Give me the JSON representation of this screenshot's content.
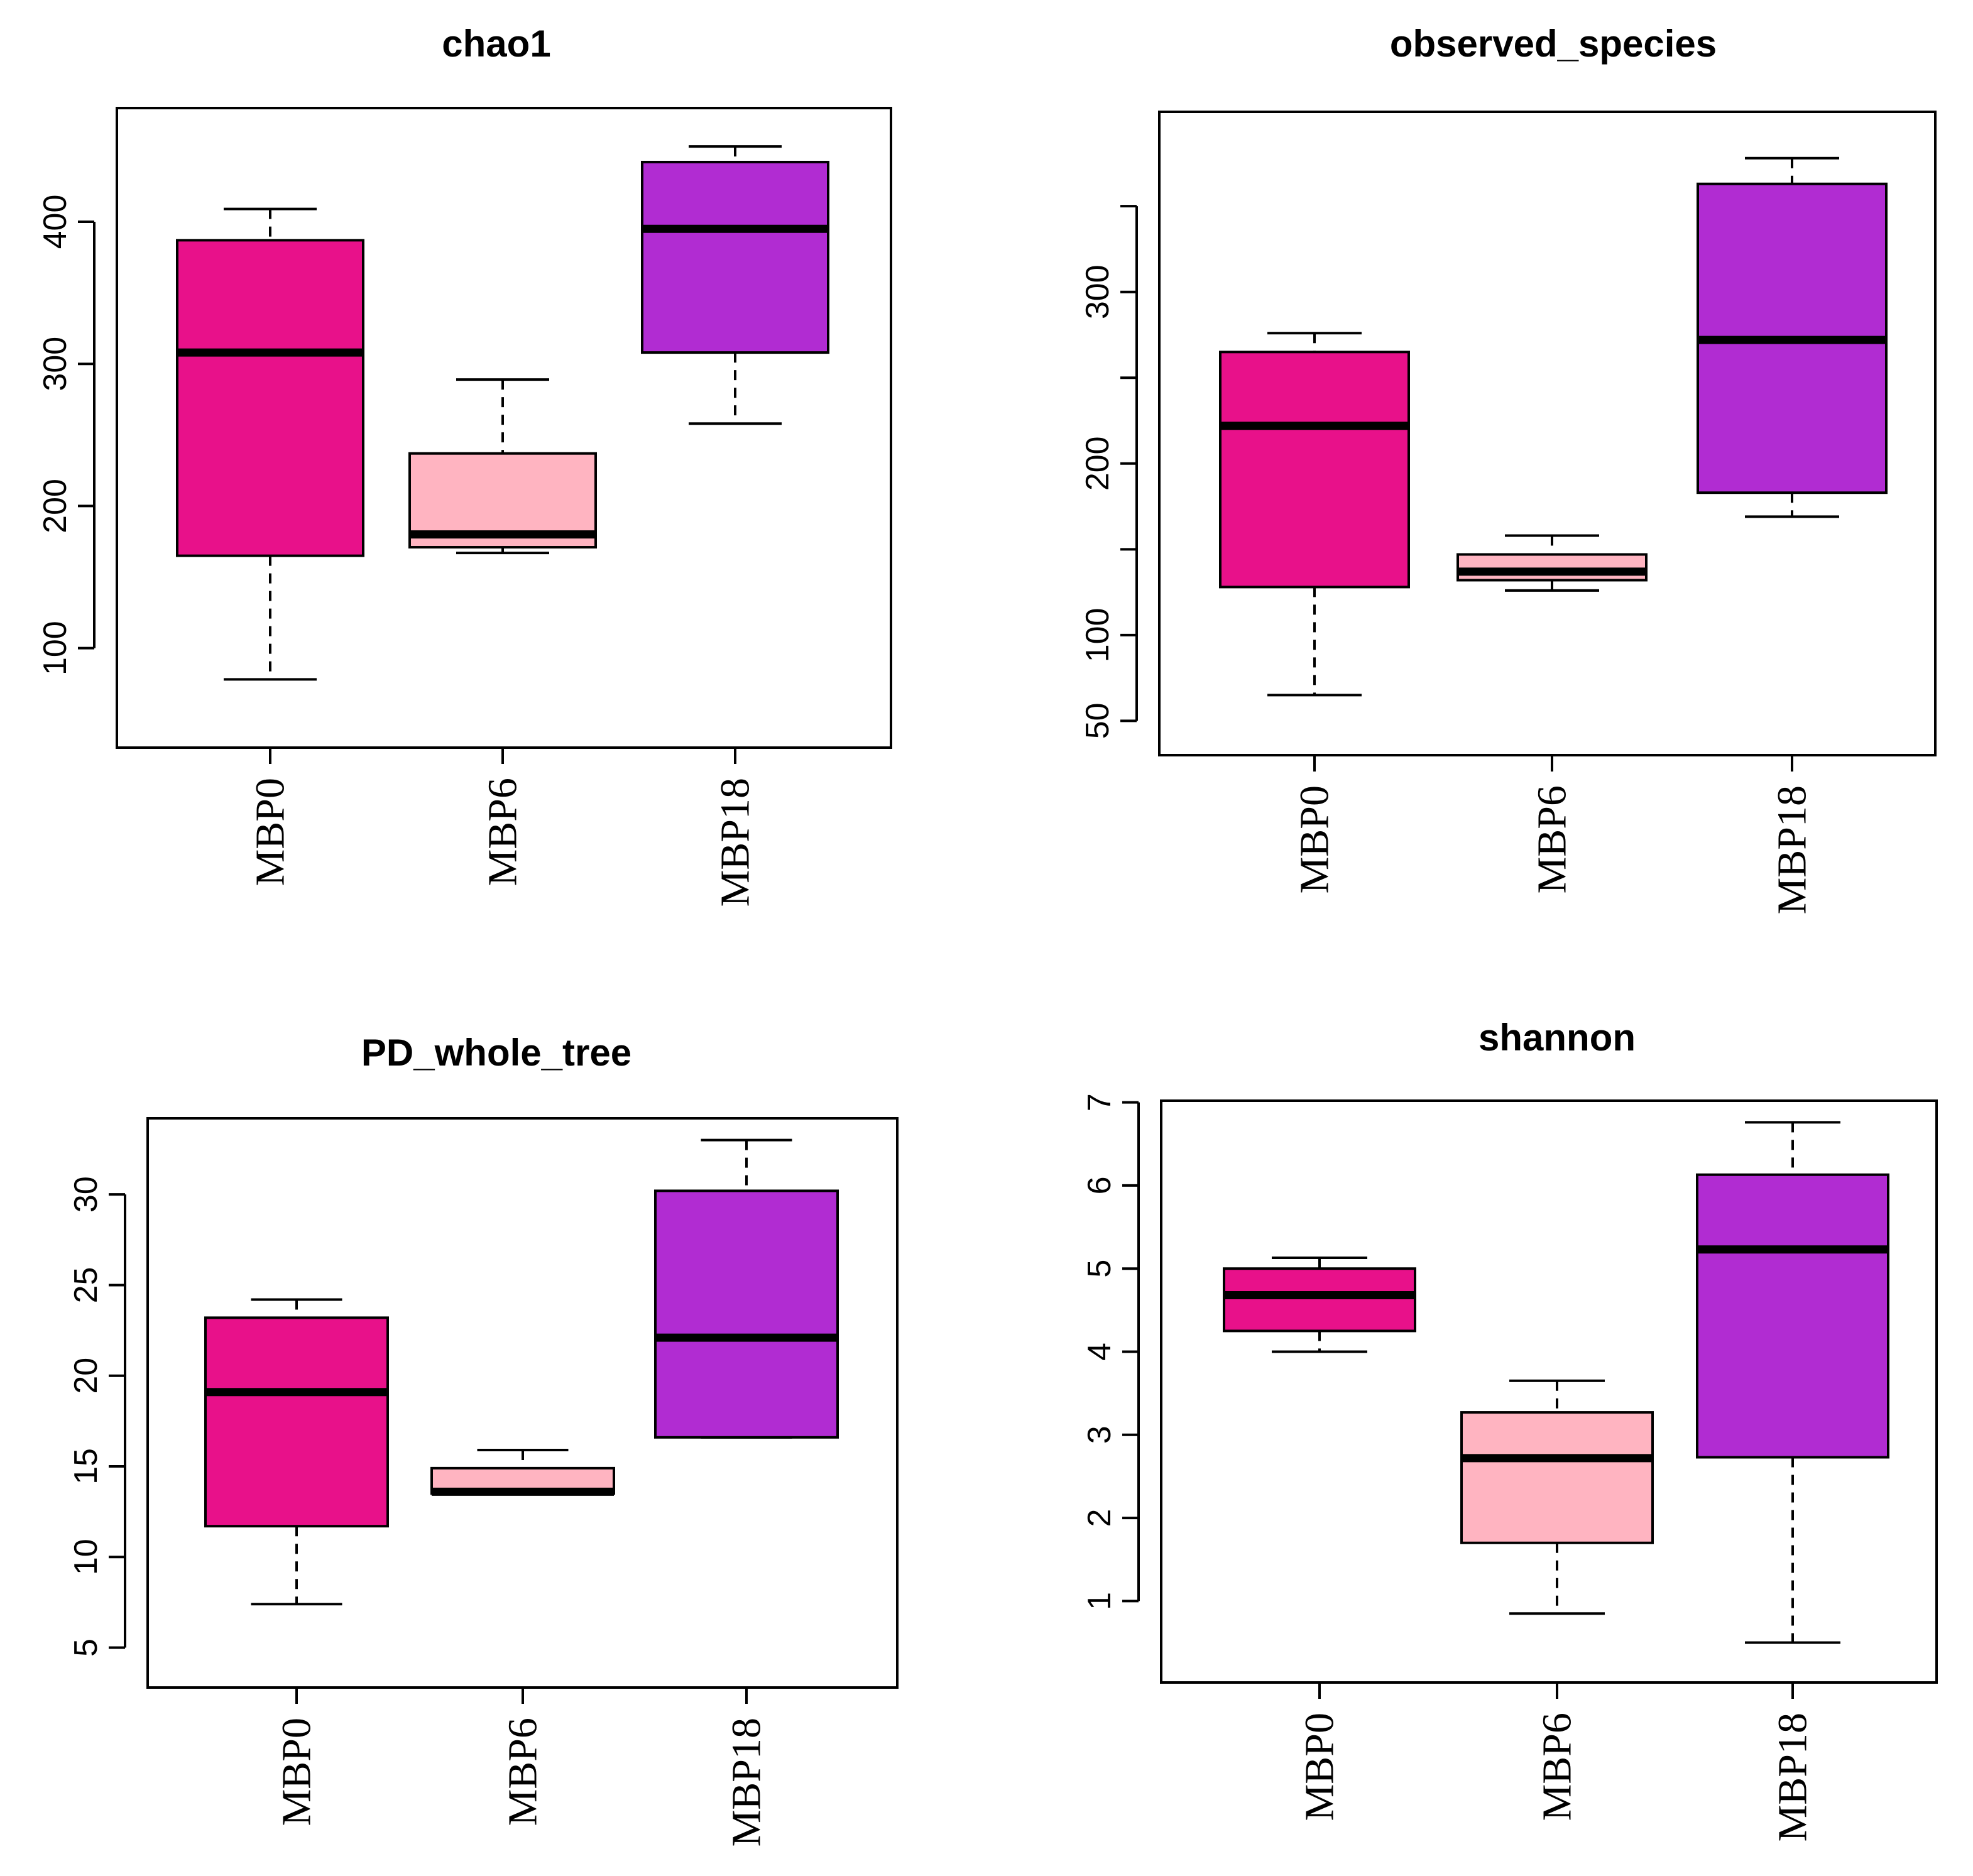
{
  "chart_data": [
    {
      "type": "boxplot",
      "title": "chao1",
      "xlabel": "",
      "ylabel": "",
      "categories": [
        "MBP0",
        "MBP6",
        "MBP18"
      ],
      "ylim": [
        30,
        480
      ],
      "yticks": [
        100,
        200,
        300,
        400
      ],
      "boxes": [
        {
          "name": "MBP0",
          "min": 78,
          "q1": 165,
          "median": 308,
          "q3": 387,
          "max": 409,
          "color": "#E8118A"
        },
        {
          "name": "MBP6",
          "min": 167,
          "q1": 171,
          "median": 180,
          "q3": 237,
          "max": 289,
          "color": "#FFB4C1"
        },
        {
          "name": "MBP18",
          "min": 258,
          "q1": 308,
          "median": 395,
          "q3": 442,
          "max": 453,
          "color": "#B12CD2"
        }
      ]
    },
    {
      "type": "boxplot",
      "title": "observed_species",
      "xlabel": "",
      "ylabel": "",
      "categories": [
        "MBP0",
        "MBP6",
        "MBP18"
      ],
      "ylim": [
        30,
        405
      ],
      "yticks": [
        50,
        100,
        150,
        200,
        250,
        300,
        350
      ],
      "ytick_labels": [
        "50",
        "100",
        "",
        "200",
        "",
        "300",
        ""
      ],
      "boxes": [
        {
          "name": "MBP0",
          "min": 65,
          "q1": 128,
          "median": 222,
          "q3": 265,
          "max": 276,
          "color": "#E8118A"
        },
        {
          "name": "MBP6",
          "min": 126,
          "q1": 132,
          "median": 137,
          "q3": 147,
          "max": 158,
          "color": "#FFB4C1"
        },
        {
          "name": "MBP18",
          "min": 169,
          "q1": 183,
          "median": 272,
          "q3": 363,
          "max": 378,
          "color": "#B12CD2"
        }
      ]
    },
    {
      "type": "boxplot",
      "title": "PD_whole_tree",
      "xlabel": "",
      "ylabel": "",
      "categories": [
        "MBP0",
        "MBP6",
        "MBP18"
      ],
      "ylim": [
        2.8,
        34.2
      ],
      "yticks": [
        5,
        10,
        15,
        20,
        25,
        30
      ],
      "boxes": [
        {
          "name": "MBP0",
          "min": 7.4,
          "q1": 11.7,
          "median": 19.1,
          "q3": 23.2,
          "max": 24.2,
          "color": "#E8118A"
        },
        {
          "name": "MBP6",
          "min": 13.5,
          "q1": 13.5,
          "median": 13.6,
          "q3": 14.9,
          "max": 15.9,
          "color": "#FFB4C1"
        },
        {
          "name": "MBP18",
          "min": 16.6,
          "q1": 16.6,
          "median": 22.1,
          "q3": 30.2,
          "max": 33.0,
          "color": "#B12CD2"
        }
      ]
    },
    {
      "type": "boxplot",
      "title": "shannon",
      "xlabel": "",
      "ylabel": "",
      "categories": [
        "MBP0",
        "MBP6",
        "MBP18"
      ],
      "ylim": [
        0.02,
        7.02
      ],
      "yticks": [
        1,
        2,
        3,
        4,
        5,
        6,
        7
      ],
      "boxes": [
        {
          "name": "MBP0",
          "min": 4.0,
          "q1": 4.25,
          "median": 4.68,
          "q3": 5.0,
          "max": 5.13,
          "color": "#E8118A"
        },
        {
          "name": "MBP6",
          "min": 0.85,
          "q1": 1.7,
          "median": 2.72,
          "q3": 3.27,
          "max": 3.65,
          "color": "#FFB4C1"
        },
        {
          "name": "MBP18",
          "min": 0.5,
          "q1": 2.73,
          "median": 5.23,
          "q3": 6.13,
          "max": 6.76,
          "color": "#B12CD2"
        }
      ]
    }
  ]
}
